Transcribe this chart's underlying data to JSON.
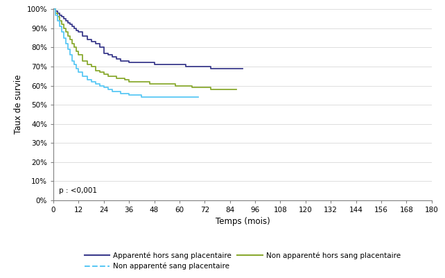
{
  "ylabel": "Taux de survie",
  "xlabel": "Temps (mois)",
  "pvalue": "p : <0,001",
  "ylim": [
    0,
    1.005
  ],
  "xlim": [
    0,
    180
  ],
  "yticks": [
    0.0,
    0.1,
    0.2,
    0.3,
    0.4,
    0.5,
    0.6,
    0.7,
    0.8,
    0.9,
    1.0
  ],
  "ytick_labels": [
    "0%",
    "10%",
    "20%",
    "30%",
    "40%",
    "50%",
    "60%",
    "70%",
    "80%",
    "90%",
    "100%"
  ],
  "xticks": [
    0,
    12,
    24,
    36,
    48,
    60,
    72,
    84,
    96,
    108,
    120,
    132,
    144,
    156,
    168,
    180
  ],
  "background_color": "#ffffff",
  "grid_color": "#d0d0d0",
  "curve1_color": "#3b3b8c",
  "curve2_color": "#8aaa30",
  "curve3_color": "#5bc8f5",
  "curve1_label": "Apparenté hors sang placentaire",
  "curve2_label": "Non apparenté hors sang placentaire",
  "curve3_label": "Non apparenté sang placentaire",
  "curve1_x": [
    0,
    1,
    2,
    3,
    4,
    5,
    6,
    7,
    8,
    9,
    10,
    11,
    12,
    14,
    16,
    18,
    20,
    22,
    24,
    26,
    28,
    30,
    32,
    34,
    36,
    38,
    40,
    42,
    44,
    46,
    48,
    50,
    52,
    54,
    56,
    58,
    60,
    63,
    66,
    69,
    72,
    75,
    78,
    81,
    84,
    87,
    90
  ],
  "curve1_y": [
    1.0,
    0.99,
    0.98,
    0.97,
    0.96,
    0.95,
    0.94,
    0.93,
    0.92,
    0.91,
    0.9,
    0.89,
    0.88,
    0.86,
    0.84,
    0.83,
    0.82,
    0.8,
    0.77,
    0.76,
    0.75,
    0.74,
    0.73,
    0.73,
    0.72,
    0.72,
    0.72,
    0.72,
    0.72,
    0.72,
    0.71,
    0.71,
    0.71,
    0.71,
    0.71,
    0.71,
    0.71,
    0.7,
    0.7,
    0.7,
    0.7,
    0.69,
    0.69,
    0.69,
    0.69,
    0.69,
    0.69
  ],
  "curve2_x": [
    0,
    1,
    2,
    3,
    4,
    5,
    6,
    7,
    8,
    9,
    10,
    11,
    12,
    14,
    16,
    18,
    20,
    22,
    24,
    26,
    28,
    30,
    32,
    34,
    36,
    38,
    40,
    42,
    44,
    46,
    48,
    50,
    52,
    54,
    56,
    58,
    60,
    63,
    66,
    69,
    72,
    75,
    78,
    81,
    84,
    87
  ],
  "curve2_y": [
    1.0,
    0.98,
    0.96,
    0.94,
    0.92,
    0.9,
    0.88,
    0.86,
    0.84,
    0.82,
    0.8,
    0.78,
    0.76,
    0.73,
    0.71,
    0.7,
    0.68,
    0.67,
    0.66,
    0.65,
    0.65,
    0.64,
    0.64,
    0.63,
    0.62,
    0.62,
    0.62,
    0.62,
    0.62,
    0.61,
    0.61,
    0.61,
    0.61,
    0.61,
    0.61,
    0.6,
    0.6,
    0.6,
    0.59,
    0.59,
    0.59,
    0.58,
    0.58,
    0.58,
    0.58,
    0.58
  ],
  "curve3_x": [
    0,
    1,
    2,
    3,
    4,
    5,
    6,
    7,
    8,
    9,
    10,
    11,
    12,
    14,
    16,
    18,
    20,
    22,
    24,
    26,
    28,
    30,
    32,
    34,
    36,
    38,
    40,
    42,
    44,
    46,
    48,
    50,
    52,
    54,
    56,
    58,
    60,
    63,
    66,
    69
  ],
  "curve3_y": [
    1.0,
    0.97,
    0.94,
    0.91,
    0.88,
    0.85,
    0.82,
    0.79,
    0.76,
    0.73,
    0.71,
    0.69,
    0.67,
    0.65,
    0.63,
    0.62,
    0.61,
    0.6,
    0.59,
    0.58,
    0.57,
    0.57,
    0.56,
    0.56,
    0.55,
    0.55,
    0.55,
    0.54,
    0.54,
    0.54,
    0.54,
    0.54,
    0.54,
    0.54,
    0.54,
    0.54,
    0.54,
    0.54,
    0.54,
    0.54
  ],
  "spine_color": "#808080",
  "tick_color": "#808080",
  "font_family": "DejaVu Sans"
}
